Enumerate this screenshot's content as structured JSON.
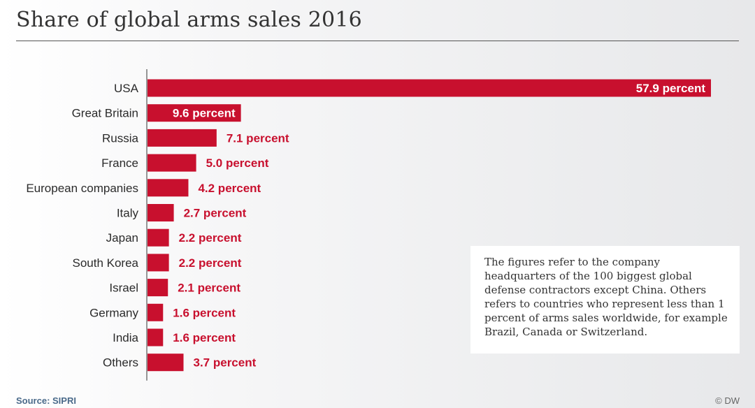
{
  "title": "Share of global arms sales 2016",
  "colors": {
    "bar": "#c8102e",
    "label_outside": "#c8102e",
    "label_inside": "#ffffff",
    "axis": "#333333"
  },
  "chart_data": {
    "type": "bar",
    "orientation": "horizontal",
    "title": "Share of global arms sales 2016",
    "xlabel": "",
    "ylabel": "",
    "unit": "percent",
    "xlim": [
      0,
      57.9
    ],
    "grid": false,
    "categories": [
      "USA",
      "Great Britain",
      "Russia",
      "France",
      "European companies",
      "Italy",
      "Japan",
      "South Korea",
      "Israel",
      "Germany",
      "India",
      "Others"
    ],
    "values": [
      57.9,
      9.6,
      7.1,
      5.0,
      4.2,
      2.7,
      2.2,
      2.2,
      2.1,
      1.6,
      1.6,
      3.7
    ],
    "value_labels": [
      "57.9 percent",
      "9.6 percent",
      "7.1 percent",
      "5.0 percent",
      "4.2 percent",
      "2.7 percent",
      "2.2 percent",
      "2.2 percent",
      "2.1 percent",
      "1.6 percent",
      "1.6 percent",
      "3.7 percent"
    ]
  },
  "note": "The figures refer to the company headquarters of the 100 biggest global defense contractors except China. Others refers to countries who represent less than 1 percent of arms sales worldwide, for example Brazil, Canada or Switzerland.",
  "source": "Source: SIPRI",
  "credit": "© DW"
}
